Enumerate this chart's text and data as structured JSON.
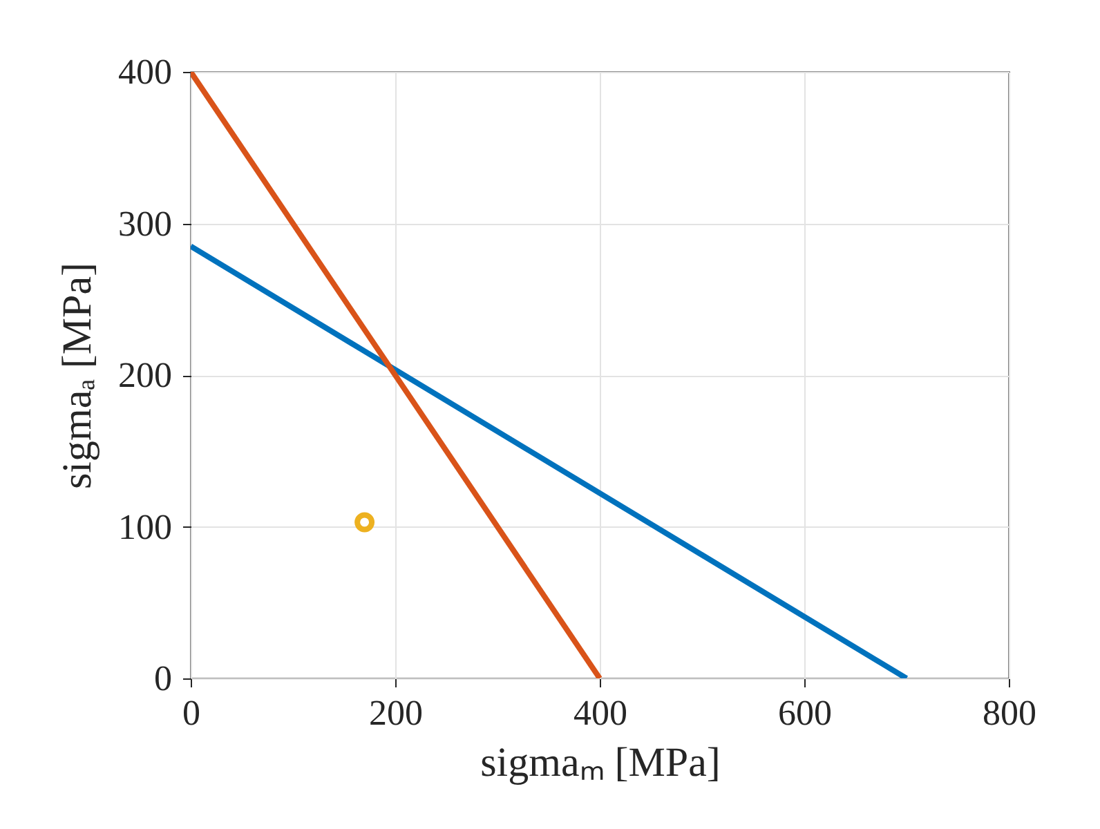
{
  "chart_data": {
    "type": "line",
    "xlabel": "sigmaₘ [MPa]",
    "ylabel": "sigmaₐ [MPa]",
    "xlim": [
      0,
      800
    ],
    "ylim": [
      0,
      400
    ],
    "xticks": [
      0,
      200,
      400,
      600,
      800
    ],
    "yticks": [
      0,
      100,
      200,
      300,
      400
    ],
    "grid": true,
    "line_style": "solid",
    "series": [
      {
        "color": "#0072bd",
        "x": [
          0,
          700
        ],
        "values": [
          285,
          0
        ]
      },
      {
        "color": "#d95319",
        "x": [
          0,
          400
        ],
        "values": [
          400,
          0
        ]
      },
      {
        "type": "scatter",
        "marker": "circle",
        "color": "#edb120",
        "x": [
          170
        ],
        "values": [
          103
        ]
      }
    ]
  }
}
